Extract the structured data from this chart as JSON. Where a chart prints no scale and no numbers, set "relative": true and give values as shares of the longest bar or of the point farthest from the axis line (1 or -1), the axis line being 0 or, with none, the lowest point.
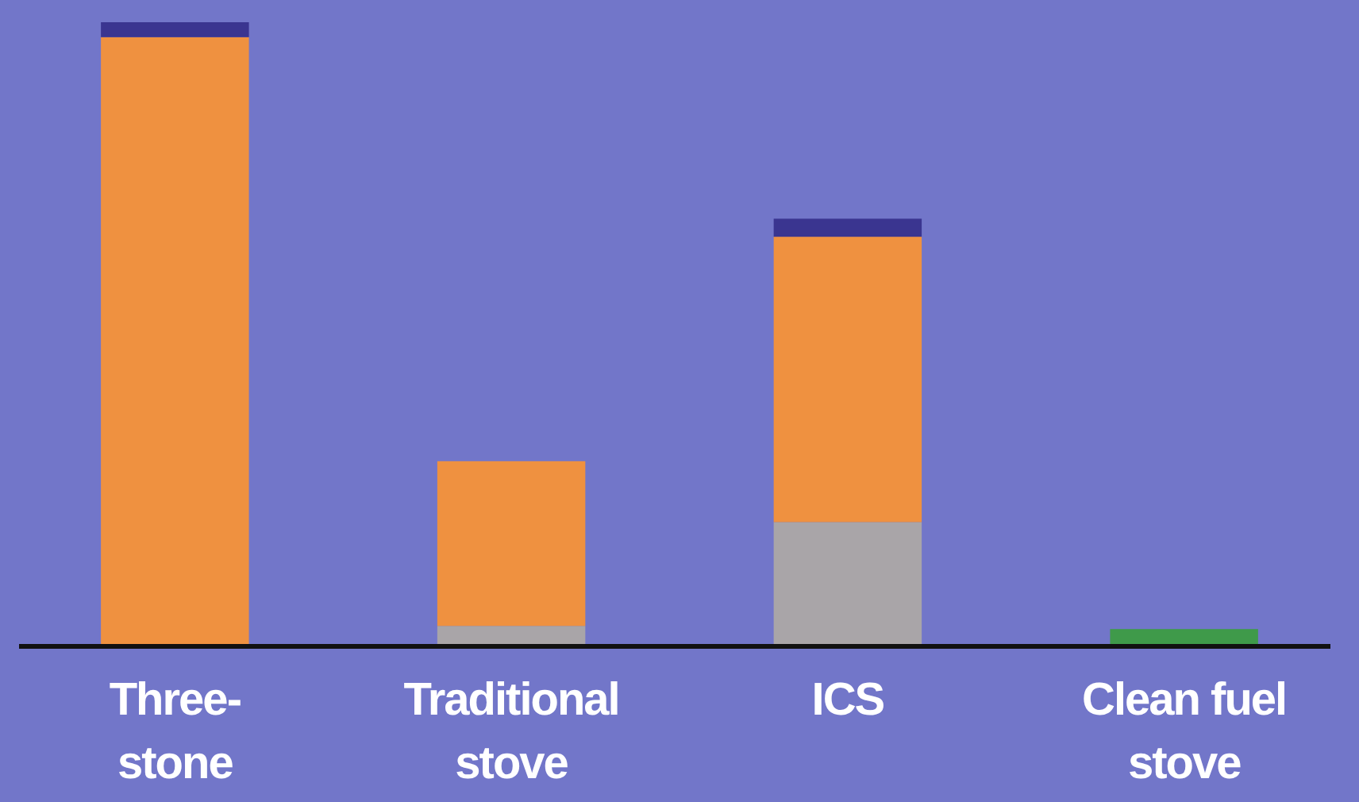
{
  "chart_data": {
    "type": "bar",
    "stacked": true,
    "relative": true,
    "categories": [
      "Three-\nstone",
      "Traditional\nstove",
      "ICS",
      "Clean fuel\nstove"
    ],
    "series": [
      {
        "color": "#a9a5a8",
        "values": [
          null,
          0.029,
          0.196,
          null
        ]
      },
      {
        "color": "#ef9140",
        "values": [
          0.976,
          0.265,
          0.459,
          null
        ]
      },
      {
        "color": "#3a3590",
        "values": [
          0.024,
          null,
          0.029,
          null
        ]
      },
      {
        "color": "#3f9a4a",
        "values": [
          null,
          null,
          null,
          0.024
        ]
      }
    ]
  }
}
